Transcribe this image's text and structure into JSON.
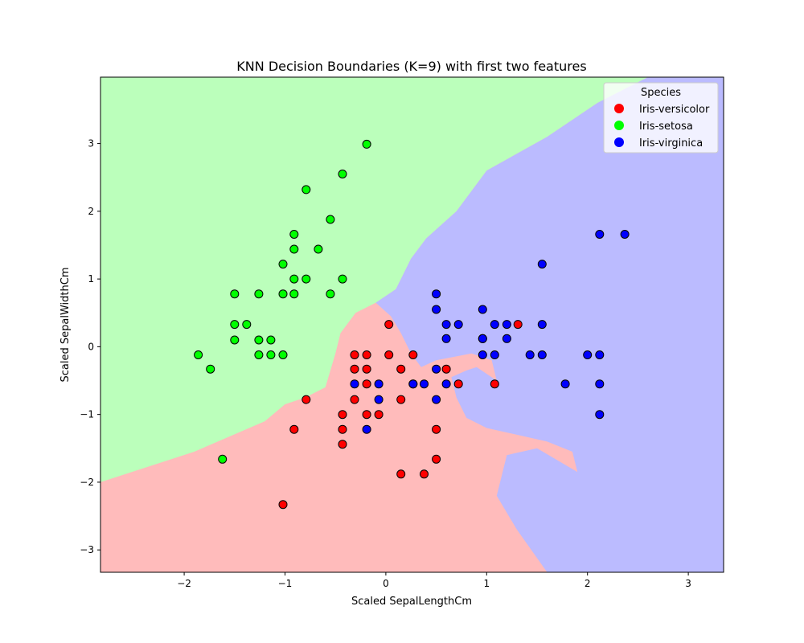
{
  "chart_data": {
    "type": "scatter",
    "title": "KNN Decision Boundaries (K=9) with first two features",
    "xlabel": "Scaled SepalLengthCm",
    "ylabel": "Scaled SepalWidthCm",
    "xlim": [
      -2.83,
      3.35
    ],
    "ylim": [
      -3.33,
      3.98
    ],
    "xticks": [
      -2,
      -1,
      0,
      1,
      2,
      3
    ],
    "xtick_labels": [
      "−2",
      "−1",
      "0",
      "1",
      "2",
      "3"
    ],
    "yticks": [
      -3,
      -2,
      -1,
      0,
      1,
      2,
      3
    ],
    "ytick_labels": [
      "−3",
      "−2",
      "−1",
      "0",
      "1",
      "2",
      "3"
    ],
    "grid": false,
    "legend": {
      "title": "Species",
      "placement": "top-right"
    },
    "regions": [
      {
        "name": "Iris-setosa",
        "color": "#bbffbb",
        "polygon": [
          [
            -2.83,
            -2.0
          ],
          [
            -1.9,
            -1.55
          ],
          [
            -1.2,
            -1.1
          ],
          [
            -1.0,
            -0.85
          ],
          [
            -0.8,
            -0.75
          ],
          [
            -0.6,
            -0.6
          ],
          [
            -0.5,
            -0.1
          ],
          [
            -0.45,
            0.2
          ],
          [
            -0.3,
            0.5
          ],
          [
            -0.1,
            0.65
          ],
          [
            0.1,
            0.85
          ],
          [
            0.25,
            1.3
          ],
          [
            0.4,
            1.6
          ],
          [
            0.7,
            2.0
          ],
          [
            1.0,
            2.6
          ],
          [
            1.6,
            3.1
          ],
          [
            2.1,
            3.6
          ],
          [
            2.6,
            3.98
          ],
          [
            -2.83,
            3.98
          ]
        ]
      },
      {
        "name": "Iris-virginica",
        "color": "#bbbbff",
        "polygon": [
          [
            -0.1,
            0.65
          ],
          [
            0.1,
            0.85
          ],
          [
            0.25,
            1.3
          ],
          [
            0.4,
            1.6
          ],
          [
            0.7,
            2.0
          ],
          [
            1.0,
            2.6
          ],
          [
            1.6,
            3.1
          ],
          [
            2.1,
            3.6
          ],
          [
            2.6,
            3.98
          ],
          [
            3.35,
            3.98
          ],
          [
            3.35,
            -3.33
          ],
          [
            1.6,
            -3.33
          ],
          [
            1.3,
            -2.7
          ],
          [
            1.1,
            -2.2
          ],
          [
            1.2,
            -1.6
          ],
          [
            1.5,
            -1.5
          ],
          [
            1.9,
            -1.85
          ],
          [
            1.85,
            -1.55
          ],
          [
            1.6,
            -1.4
          ],
          [
            1.3,
            -1.3
          ],
          [
            1.0,
            -1.2
          ],
          [
            0.8,
            -1.05
          ],
          [
            0.7,
            -0.75
          ],
          [
            0.65,
            -0.45
          ],
          [
            0.8,
            -0.35
          ],
          [
            0.9,
            -0.3
          ],
          [
            1.0,
            -0.4
          ],
          [
            1.1,
            -0.5
          ],
          [
            1.05,
            -0.2
          ],
          [
            0.85,
            -0.1
          ],
          [
            0.5,
            -0.2
          ],
          [
            0.35,
            -0.3
          ],
          [
            0.25,
            -0.1
          ],
          [
            0.15,
            0.2
          ],
          [
            0.05,
            0.45
          ]
        ]
      }
    ],
    "background_region": {
      "name": "Iris-versicolor",
      "color": "#ffbbbb"
    },
    "series": [
      {
        "name": "Iris-versicolor",
        "color": "#ff0000",
        "points": [
          [
            0.03,
            0.33
          ],
          [
            -0.31,
            -0.12
          ],
          [
            -0.19,
            -0.12
          ],
          [
            0.03,
            -0.12
          ],
          [
            0.27,
            -0.12
          ],
          [
            -0.31,
            -0.33
          ],
          [
            -0.19,
            -0.33
          ],
          [
            0.15,
            -0.33
          ],
          [
            -0.19,
            -0.55
          ],
          [
            0.27,
            -0.55
          ],
          [
            0.6,
            -0.33
          ],
          [
            0.72,
            -0.55
          ],
          [
            -0.79,
            -0.78
          ],
          [
            -0.31,
            -0.78
          ],
          [
            0.15,
            -0.78
          ],
          [
            -0.43,
            -1.0
          ],
          [
            -0.19,
            -1.0
          ],
          [
            -0.07,
            -1.0
          ],
          [
            -0.91,
            -1.22
          ],
          [
            -0.43,
            -1.22
          ],
          [
            -0.43,
            -1.44
          ],
          [
            0.5,
            -1.22
          ],
          [
            0.5,
            -1.66
          ],
          [
            0.15,
            -1.88
          ],
          [
            0.38,
            -1.88
          ],
          [
            -1.02,
            -2.33
          ],
          [
            0.96,
            0.12
          ],
          [
            1.31,
            0.33
          ],
          [
            1.08,
            -0.55
          ]
        ]
      },
      {
        "name": "Iris-setosa",
        "color": "#00ff00",
        "points": [
          [
            -0.19,
            2.99
          ],
          [
            -0.43,
            2.55
          ],
          [
            -0.79,
            2.32
          ],
          [
            -0.55,
            1.88
          ],
          [
            -0.91,
            1.66
          ],
          [
            -0.91,
            1.44
          ],
          [
            -0.67,
            1.44
          ],
          [
            -1.02,
            1.22
          ],
          [
            -0.91,
            1.0
          ],
          [
            -0.79,
            1.0
          ],
          [
            -0.43,
            1.0
          ],
          [
            -1.5,
            0.78
          ],
          [
            -1.26,
            0.78
          ],
          [
            -1.02,
            0.78
          ],
          [
            -0.91,
            0.78
          ],
          [
            -0.55,
            0.78
          ],
          [
            -1.5,
            0.33
          ],
          [
            -1.38,
            0.33
          ],
          [
            -1.5,
            0.1
          ],
          [
            -1.26,
            0.1
          ],
          [
            -1.14,
            0.1
          ],
          [
            -1.86,
            -0.12
          ],
          [
            -1.26,
            -0.12
          ],
          [
            -1.14,
            -0.12
          ],
          [
            -1.02,
            -0.12
          ],
          [
            -1.74,
            -0.33
          ],
          [
            -1.62,
            -1.66
          ]
        ]
      },
      {
        "name": "Iris-virginica",
        "color": "#0000ff",
        "points": [
          [
            2.12,
            1.66
          ],
          [
            2.37,
            1.66
          ],
          [
            1.55,
            1.22
          ],
          [
            0.5,
            0.78
          ],
          [
            0.5,
            0.55
          ],
          [
            0.96,
            0.55
          ],
          [
            0.6,
            0.33
          ],
          [
            0.72,
            0.33
          ],
          [
            1.08,
            0.33
          ],
          [
            1.2,
            0.33
          ],
          [
            1.55,
            0.33
          ],
          [
            0.6,
            0.12
          ],
          [
            0.96,
            0.12
          ],
          [
            1.2,
            0.12
          ],
          [
            0.96,
            -0.12
          ],
          [
            1.08,
            -0.12
          ],
          [
            1.43,
            -0.12
          ],
          [
            1.55,
            -0.12
          ],
          [
            2.0,
            -0.12
          ],
          [
            2.12,
            -0.12
          ],
          [
            0.5,
            -0.33
          ],
          [
            -0.31,
            -0.55
          ],
          [
            -0.07,
            -0.55
          ],
          [
            0.27,
            -0.55
          ],
          [
            0.38,
            -0.55
          ],
          [
            0.6,
            -0.55
          ],
          [
            1.78,
            -0.55
          ],
          [
            2.12,
            -0.55
          ],
          [
            -0.07,
            -0.78
          ],
          [
            0.5,
            -0.78
          ],
          [
            2.12,
            -1.0
          ],
          [
            -0.19,
            -1.22
          ]
        ]
      }
    ]
  }
}
